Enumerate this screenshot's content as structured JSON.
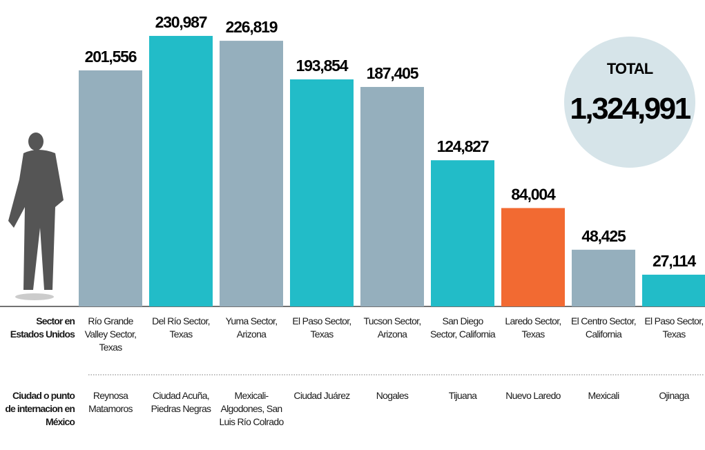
{
  "chart_data": {
    "type": "bar",
    "row_labels": {
      "sector": "Sector en Estados Unidos",
      "city": "Ciudad o punto de internacion en México"
    },
    "categories": [
      "Río Grande Valley Sector, Texas",
      "Del Río Sector, Texas",
      "Yuma Sector, Arizona",
      "El Paso Sector, Texas",
      "Tucson Sector, Arizona",
      "San Diego Sector, California",
      "Laredo Sector, Texas",
      "El Centro Sector, California",
      "El Paso Sector, Texas"
    ],
    "cities": [
      "Reynosa Matamoros",
      "Ciudad Acuña, Piedras Negras",
      "Mexicali-Algodones, San Luis Río Colrado",
      "Ciudad Juárez",
      "Nogales",
      "Tijuana",
      "Nuevo Laredo",
      "Mexicali",
      "Ojinaga"
    ],
    "values": [
      201556,
      230987,
      226819,
      193854,
      187405,
      124827,
      84004,
      48425,
      27114
    ],
    "value_labels": [
      "201,556",
      "230,987",
      "226,819",
      "193,854",
      "187,405",
      "124,827",
      "84,004",
      "48,425",
      "27,114"
    ],
    "colors": [
      "#95afbd",
      "#22bcc8",
      "#95afbd",
      "#22bcc8",
      "#95afbd",
      "#22bcc8",
      "#f26a32",
      "#95afbd",
      "#22bcc8"
    ],
    "ylim": [
      0,
      231000
    ],
    "total": {
      "label": "TOTAL",
      "value": 1324991,
      "value_label": "1,324,991"
    }
  }
}
